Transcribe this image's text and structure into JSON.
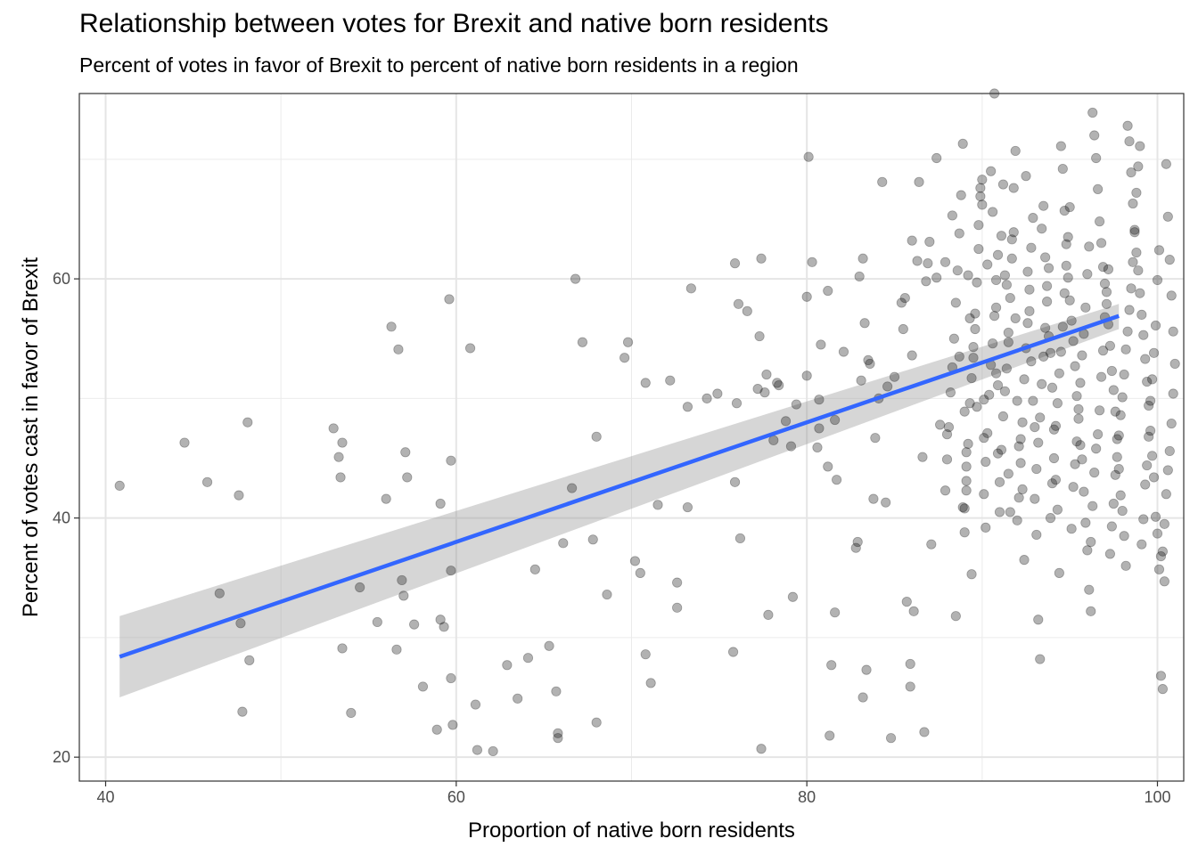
{
  "chart_data": {
    "type": "scatter",
    "title": "Relationship between votes for Brexit and native born residents",
    "subtitle": "Percent of votes in favor of Brexit to percent of native born residents in a region",
    "xlabel": "Proportion of native born residents",
    "ylabel": "Percent of votes cast in favor of Brexit",
    "xlim": [
      38.5,
      101.5
    ],
    "ylim": [
      18,
      75.5
    ],
    "x_ticks": [
      40,
      60,
      80,
      100
    ],
    "y_ticks": [
      20,
      40,
      60
    ],
    "x_tick_labels": [
      "40",
      "60",
      "80",
      "100"
    ],
    "y_tick_labels": [
      "20",
      "40",
      "60"
    ],
    "grid": true,
    "legend": "none",
    "point_color": "#000000",
    "point_opacity": 0.3,
    "fit_line_color": "#3366ff",
    "ribbon_color": "#999999",
    "fit_line": {
      "x": [
        40.8,
        97.8
      ],
      "y": [
        28.4,
        56.9
      ]
    },
    "confidence_band": {
      "x": [
        40.8,
        97.8
      ],
      "lower": [
        25.0,
        55.8
      ],
      "upper": [
        31.8,
        57.9
      ]
    },
    "points": [
      [
        40.8,
        42.7
      ],
      [
        44.5,
        46.3
      ],
      [
        45.8,
        43.0
      ],
      [
        46.5,
        33.7
      ],
      [
        47.6,
        41.9
      ],
      [
        47.7,
        31.2
      ],
      [
        47.8,
        23.8
      ],
      [
        48.1,
        48.0
      ],
      [
        48.2,
        28.1
      ],
      [
        53.0,
        47.5
      ],
      [
        53.3,
        45.1
      ],
      [
        53.4,
        43.4
      ],
      [
        53.5,
        46.3
      ],
      [
        53.5,
        29.1
      ],
      [
        54.0,
        23.7
      ],
      [
        54.5,
        34.2
      ],
      [
        55.5,
        31.3
      ],
      [
        56.0,
        41.6
      ],
      [
        56.3,
        56.0
      ],
      [
        56.6,
        29.0
      ],
      [
        56.7,
        54.1
      ],
      [
        56.9,
        34.8
      ],
      [
        57.0,
        33.5
      ],
      [
        57.1,
        45.5
      ],
      [
        57.2,
        43.4
      ],
      [
        57.6,
        31.1
      ],
      [
        58.1,
        25.9
      ],
      [
        58.9,
        22.3
      ],
      [
        59.1,
        41.2
      ],
      [
        59.1,
        31.5
      ],
      [
        59.3,
        30.9
      ],
      [
        59.6,
        58.3
      ],
      [
        59.7,
        44.8
      ],
      [
        59.7,
        35.6
      ],
      [
        59.7,
        26.6
      ],
      [
        59.8,
        22.7
      ],
      [
        60.8,
        54.2
      ],
      [
        61.1,
        24.4
      ],
      [
        61.2,
        20.6
      ],
      [
        62.1,
        20.5
      ],
      [
        62.9,
        27.7
      ],
      [
        63.5,
        24.9
      ],
      [
        64.1,
        28.3
      ],
      [
        64.5,
        35.7
      ],
      [
        65.3,
        29.3
      ],
      [
        65.7,
        25.5
      ],
      [
        65.8,
        21.6
      ],
      [
        65.8,
        22.0
      ],
      [
        66.1,
        37.9
      ],
      [
        66.6,
        42.5
      ],
      [
        66.8,
        60.0
      ],
      [
        67.2,
        54.7
      ],
      [
        67.8,
        38.2
      ],
      [
        68.0,
        46.8
      ],
      [
        68.0,
        22.9
      ],
      [
        68.6,
        33.6
      ],
      [
        69.6,
        53.4
      ],
      [
        69.8,
        54.7
      ],
      [
        70.2,
        36.4
      ],
      [
        70.5,
        35.4
      ],
      [
        70.8,
        28.6
      ],
      [
        70.8,
        51.3
      ],
      [
        71.1,
        26.2
      ],
      [
        71.5,
        41.1
      ],
      [
        72.2,
        51.5
      ],
      [
        72.6,
        34.6
      ],
      [
        72.6,
        32.5
      ],
      [
        73.2,
        40.9
      ],
      [
        73.2,
        49.3
      ],
      [
        73.4,
        59.2
      ],
      [
        74.3,
        50.0
      ],
      [
        74.9,
        50.4
      ],
      [
        75.8,
        28.8
      ],
      [
        75.9,
        61.3
      ],
      [
        75.9,
        43.0
      ],
      [
        76.0,
        49.6
      ],
      [
        76.1,
        57.9
      ],
      [
        76.2,
        38.3
      ],
      [
        76.6,
        57.3
      ],
      [
        77.2,
        50.8
      ],
      [
        77.3,
        55.2
      ],
      [
        77.4,
        61.7
      ],
      [
        77.4,
        20.7
      ],
      [
        77.6,
        50.5
      ],
      [
        77.7,
        52.0
      ],
      [
        77.8,
        31.9
      ],
      [
        78.1,
        46.5
      ],
      [
        78.3,
        51.3
      ],
      [
        78.4,
        51.1
      ],
      [
        78.8,
        48.1
      ],
      [
        79.1,
        46.0
      ],
      [
        79.2,
        33.4
      ],
      [
        79.4,
        49.5
      ],
      [
        80.0,
        51.9
      ],
      [
        80.0,
        58.5
      ],
      [
        80.1,
        70.2
      ],
      [
        80.3,
        61.4
      ],
      [
        80.6,
        45.9
      ],
      [
        80.7,
        49.9
      ],
      [
        80.7,
        47.5
      ],
      [
        80.8,
        54.5
      ],
      [
        81.2,
        59.0
      ],
      [
        81.2,
        44.3
      ],
      [
        81.3,
        21.8
      ],
      [
        81.4,
        27.7
      ],
      [
        81.6,
        48.2
      ],
      [
        81.6,
        32.1
      ],
      [
        81.7,
        43.2
      ],
      [
        82.1,
        53.9
      ],
      [
        82.8,
        37.5
      ],
      [
        82.9,
        38.0
      ],
      [
        83.0,
        60.2
      ],
      [
        83.1,
        51.5
      ],
      [
        83.2,
        61.7
      ],
      [
        83.2,
        25.0
      ],
      [
        83.3,
        56.3
      ],
      [
        83.4,
        27.3
      ],
      [
        83.5,
        53.2
      ],
      [
        83.6,
        52.9
      ],
      [
        83.8,
        41.6
      ],
      [
        83.9,
        46.7
      ],
      [
        84.1,
        50.0
      ],
      [
        84.3,
        68.1
      ],
      [
        84.5,
        41.3
      ],
      [
        84.6,
        51.0
      ],
      [
        84.8,
        21.6
      ],
      [
        85.0,
        51.8
      ],
      [
        85.4,
        58.0
      ],
      [
        85.5,
        55.8
      ],
      [
        85.6,
        58.4
      ],
      [
        85.7,
        33.0
      ],
      [
        85.9,
        25.9
      ],
      [
        85.9,
        27.8
      ],
      [
        86.0,
        63.2
      ],
      [
        86.0,
        53.6
      ],
      [
        86.1,
        32.2
      ],
      [
        86.3,
        61.5
      ],
      [
        86.4,
        68.1
      ],
      [
        86.6,
        45.1
      ],
      [
        86.7,
        22.1
      ],
      [
        86.8,
        59.8
      ],
      [
        86.9,
        61.3
      ],
      [
        87.0,
        63.1
      ],
      [
        87.1,
        37.8
      ],
      [
        87.4,
        70.1
      ],
      [
        87.4,
        60.1
      ],
      [
        87.6,
        47.8
      ],
      [
        87.9,
        61.4
      ],
      [
        88.0,
        47.0
      ],
      [
        88.3,
        65.3
      ],
      [
        88.5,
        31.8
      ],
      [
        88.7,
        53.5
      ],
      [
        88.9,
        40.9
      ],
      [
        89.0,
        38.8
      ],
      [
        89.0,
        48.9
      ],
      [
        89.1,
        45.5
      ],
      [
        89.1,
        43.1
      ],
      [
        89.1,
        42.3
      ],
      [
        89.2,
        60.3
      ],
      [
        89.3,
        56.7
      ],
      [
        89.4,
        35.3
      ],
      [
        89.5,
        53.4
      ],
      [
        89.6,
        55.8
      ],
      [
        89.7,
        49.3
      ],
      [
        89.8,
        64.5
      ],
      [
        89.9,
        67.6
      ],
      [
        90.0,
        66.2
      ],
      [
        90.1,
        49.9
      ],
      [
        90.1,
        46.7
      ],
      [
        90.2,
        39.2
      ],
      [
        90.3,
        61.2
      ],
      [
        90.5,
        69.0
      ],
      [
        90.6,
        65.6
      ],
      [
        90.7,
        75.5
      ],
      [
        90.8,
        57.6
      ],
      [
        90.8,
        52.1
      ],
      [
        90.9,
        51.1
      ],
      [
        90.9,
        45.4
      ],
      [
        91.0,
        40.5
      ],
      [
        91.1,
        63.6
      ],
      [
        91.2,
        67.9
      ],
      [
        91.3,
        60.3
      ],
      [
        91.4,
        59.5
      ],
      [
        91.5,
        54.7
      ],
      [
        91.5,
        43.7
      ],
      [
        91.6,
        40.5
      ],
      [
        91.7,
        63.3
      ],
      [
        91.8,
        67.6
      ],
      [
        91.9,
        56.7
      ],
      [
        92.0,
        49.8
      ],
      [
        92.1,
        46.0
      ],
      [
        92.2,
        44.6
      ],
      [
        92.3,
        42.4
      ],
      [
        92.4,
        36.5
      ],
      [
        92.5,
        68.6
      ],
      [
        92.6,
        60.6
      ],
      [
        92.7,
        57.3
      ],
      [
        92.8,
        53.1
      ],
      [
        92.9,
        49.8
      ],
      [
        93.0,
        47.6
      ],
      [
        93.1,
        38.6
      ],
      [
        93.2,
        31.5
      ],
      [
        93.3,
        28.2
      ],
      [
        93.4,
        64.2
      ],
      [
        93.5,
        66.1
      ],
      [
        93.6,
        61.8
      ],
      [
        93.7,
        59.4
      ],
      [
        93.8,
        55.2
      ],
      [
        93.9,
        53.8
      ],
      [
        94.0,
        50.9
      ],
      [
        94.1,
        47.4
      ],
      [
        94.2,
        43.2
      ],
      [
        94.3,
        40.7
      ],
      [
        94.4,
        35.4
      ],
      [
        94.5,
        71.1
      ],
      [
        94.6,
        69.2
      ],
      [
        94.7,
        65.7
      ],
      [
        94.8,
        62.9
      ],
      [
        94.9,
        60.1
      ],
      [
        95.0,
        58.2
      ],
      [
        95.1,
        56.5
      ],
      [
        95.2,
        54.8
      ],
      [
        95.3,
        52.7
      ],
      [
        95.4,
        50.2
      ],
      [
        95.5,
        48.3
      ],
      [
        95.6,
        46.1
      ],
      [
        95.7,
        44.9
      ],
      [
        95.8,
        42.2
      ],
      [
        95.9,
        39.6
      ],
      [
        96.0,
        37.3
      ],
      [
        96.1,
        34.0
      ],
      [
        96.2,
        32.2
      ],
      [
        96.3,
        73.9
      ],
      [
        96.4,
        72.0
      ],
      [
        96.5,
        70.1
      ],
      [
        96.6,
        67.5
      ],
      [
        96.7,
        64.8
      ],
      [
        96.8,
        63.0
      ],
      [
        96.9,
        61.0
      ],
      [
        97.0,
        59.6
      ],
      [
        97.1,
        57.9
      ],
      [
        97.2,
        56.2
      ],
      [
        97.3,
        54.4
      ],
      [
        97.4,
        52.3
      ],
      [
        97.5,
        50.7
      ],
      [
        97.6,
        48.9
      ],
      [
        97.7,
        46.6
      ],
      [
        97.8,
        44.1
      ],
      [
        97.9,
        41.9
      ],
      [
        98.0,
        40.6
      ],
      [
        98.1,
        38.5
      ],
      [
        98.2,
        36.0
      ],
      [
        98.3,
        72.8
      ],
      [
        98.4,
        71.5
      ],
      [
        98.5,
        68.9
      ],
      [
        98.6,
        66.3
      ],
      [
        98.7,
        63.9
      ],
      [
        98.8,
        62.2
      ],
      [
        98.9,
        60.7
      ],
      [
        99.0,
        58.8
      ],
      [
        99.1,
        57.0
      ],
      [
        99.2,
        55.3
      ],
      [
        99.3,
        53.3
      ],
      [
        99.4,
        51.4
      ],
      [
        99.5,
        49.4
      ],
      [
        99.6,
        47.3
      ],
      [
        99.7,
        45.2
      ],
      [
        99.8,
        43.4
      ],
      [
        99.9,
        40.1
      ],
      [
        100.0,
        38.7
      ],
      [
        100.1,
        35.7
      ],
      [
        100.2,
        26.8
      ],
      [
        100.3,
        25.7
      ],
      [
        100.4,
        34.7
      ],
      [
        100.5,
        69.6
      ],
      [
        100.6,
        65.2
      ],
      [
        100.7,
        61.6
      ],
      [
        100.8,
        58.6
      ],
      [
        100.9,
        55.6
      ],
      [
        101.0,
        52.9
      ],
      [
        100.9,
        50.4
      ],
      [
        100.8,
        47.9
      ],
      [
        100.7,
        45.6
      ],
      [
        100.6,
        44.0
      ],
      [
        100.5,
        42.0
      ],
      [
        100.4,
        39.5
      ],
      [
        100.3,
        37.2
      ],
      [
        100.2,
        36.8
      ],
      [
        100.1,
        62.4
      ],
      [
        100.0,
        59.9
      ],
      [
        99.9,
        56.1
      ],
      [
        99.8,
        53.8
      ],
      [
        99.7,
        51.6
      ],
      [
        99.6,
        49.8
      ],
      [
        99.5,
        46.8
      ],
      [
        99.4,
        44.4
      ],
      [
        99.3,
        42.8
      ],
      [
        99.2,
        39.9
      ],
      [
        99.1,
        37.8
      ],
      [
        99.0,
        71.1
      ],
      [
        98.9,
        69.4
      ],
      [
        98.8,
        67.2
      ],
      [
        98.7,
        64.1
      ],
      [
        98.6,
        61.4
      ],
      [
        98.5,
        59.2
      ],
      [
        98.4,
        57.4
      ],
      [
        98.3,
        55.6
      ],
      [
        98.2,
        54.1
      ],
      [
        98.1,
        52.0
      ],
      [
        98.0,
        50.1
      ],
      [
        97.9,
        48.6
      ],
      [
        97.8,
        46.9
      ],
      [
        97.7,
        45.1
      ],
      [
        97.6,
        43.6
      ],
      [
        97.5,
        41.2
      ],
      [
        97.4,
        39.3
      ],
      [
        97.3,
        37.0
      ],
      [
        97.2,
        60.8
      ],
      [
        97.1,
        58.9
      ],
      [
        97.0,
        56.8
      ],
      [
        96.9,
        54.0
      ],
      [
        96.8,
        51.8
      ],
      [
        96.7,
        49.0
      ],
      [
        96.6,
        47.0
      ],
      [
        96.5,
        45.8
      ],
      [
        96.4,
        43.8
      ],
      [
        96.3,
        41.0
      ],
      [
        96.2,
        38.0
      ],
      [
        96.1,
        62.7
      ],
      [
        96.0,
        60.4
      ],
      [
        95.9,
        57.6
      ],
      [
        95.8,
        55.4
      ],
      [
        95.7,
        53.6
      ],
      [
        95.6,
        51.3
      ],
      [
        95.5,
        49.1
      ],
      [
        95.4,
        46.4
      ],
      [
        95.3,
        44.5
      ],
      [
        95.2,
        42.6
      ],
      [
        95.1,
        39.1
      ],
      [
        95.0,
        66.0
      ],
      [
        94.9,
        63.5
      ],
      [
        94.8,
        61.1
      ],
      [
        94.7,
        58.8
      ],
      [
        94.6,
        56.0
      ],
      [
        94.5,
        53.9
      ],
      [
        94.4,
        52.1
      ],
      [
        94.3,
        49.6
      ],
      [
        94.2,
        47.7
      ],
      [
        94.1,
        45.0
      ],
      [
        94.0,
        42.9
      ],
      [
        93.9,
        40.0
      ],
      [
        93.8,
        60.9
      ],
      [
        93.7,
        58.1
      ],
      [
        93.6,
        55.9
      ],
      [
        93.5,
        53.5
      ],
      [
        93.4,
        51.2
      ],
      [
        93.3,
        48.4
      ],
      [
        93.2,
        46.3
      ],
      [
        93.1,
        44.1
      ],
      [
        93.0,
        41.6
      ],
      [
        92.9,
        65.1
      ],
      [
        92.8,
        62.6
      ],
      [
        92.7,
        59.1
      ],
      [
        92.6,
        56.3
      ],
      [
        92.5,
        54.2
      ],
      [
        92.4,
        51.6
      ],
      [
        92.3,
        48.0
      ],
      [
        92.2,
        46.6
      ],
      [
        92.1,
        41.7
      ],
      [
        92.0,
        39.8
      ],
      [
        91.9,
        70.7
      ],
      [
        91.8,
        63.9
      ],
      [
        91.7,
        61.7
      ],
      [
        91.6,
        58.4
      ],
      [
        91.5,
        55.5
      ],
      [
        91.4,
        52.5
      ],
      [
        91.3,
        50.6
      ],
      [
        91.2,
        48.5
      ],
      [
        91.1,
        45.7
      ],
      [
        91.0,
        43.0
      ],
      [
        90.9,
        62.0
      ],
      [
        90.8,
        59.9
      ],
      [
        90.7,
        56.9
      ],
      [
        90.6,
        54.6
      ],
      [
        90.5,
        52.8
      ],
      [
        90.4,
        50.3
      ],
      [
        90.3,
        47.1
      ],
      [
        90.2,
        44.7
      ],
      [
        90.1,
        42.0
      ],
      [
        90.0,
        68.3
      ],
      [
        89.9,
        66.9
      ],
      [
        89.8,
        62.5
      ],
      [
        89.7,
        59.7
      ],
      [
        89.6,
        57.1
      ],
      [
        89.5,
        54.3
      ],
      [
        89.4,
        51.7
      ],
      [
        89.3,
        49.6
      ],
      [
        89.2,
        46.2
      ],
      [
        89.1,
        44.3
      ],
      [
        89.0,
        40.8
      ],
      [
        88.9,
        71.3
      ],
      [
        88.8,
        67.0
      ],
      [
        88.7,
        63.8
      ],
      [
        88.6,
        60.7
      ],
      [
        88.5,
        58.0
      ],
      [
        88.4,
        55.0
      ],
      [
        88.3,
        52.6
      ],
      [
        88.2,
        50.5
      ],
      [
        88.1,
        47.6
      ],
      [
        88.0,
        44.9
      ],
      [
        87.9,
        42.3
      ]
    ]
  }
}
